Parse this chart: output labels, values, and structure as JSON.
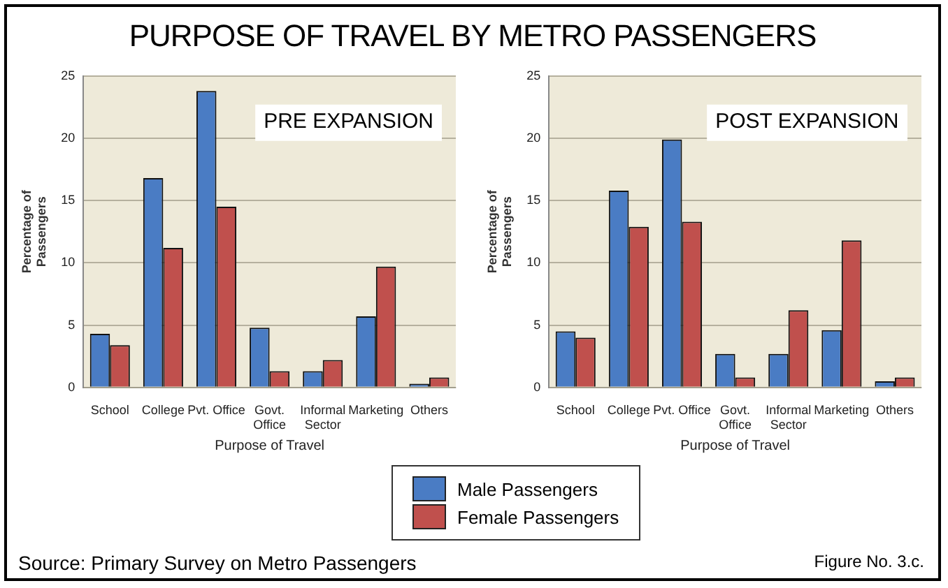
{
  "chart_data": [
    {
      "type": "bar",
      "title": "PURPOSE OF TRAVEL BY METRO PASSENGERS",
      "subtitle": "PRE EXPANSION",
      "xlabel": "Purpose of Travel",
      "ylabel": "Percentage of Passengers",
      "categories": [
        "School",
        "College",
        "Pvt. Office",
        "Govt. Office",
        "Informal Sector",
        "Marketing",
        "Others"
      ],
      "series": [
        {
          "name": "Male Passengers",
          "color": "#4a7cc4",
          "values": [
            4.3,
            16.8,
            23.8,
            4.8,
            1.3,
            5.7,
            0.3
          ]
        },
        {
          "name": "Female Passengers",
          "color": "#c0504d",
          "values": [
            3.4,
            11.2,
            14.5,
            1.3,
            2.2,
            9.7,
            0.8
          ]
        }
      ],
      "ylim": [
        0,
        25
      ],
      "yticks": [
        0,
        5,
        10,
        15,
        20,
        25
      ],
      "grid": "y",
      "legend": "bottom",
      "annotations": [
        "Source: Primary Survey on Metro Passengers",
        "Figure No. 3.c."
      ]
    },
    {
      "type": "bar",
      "subtitle": "POST EXPANSION",
      "xlabel": "Purpose of Travel",
      "ylabel": "Percentage of Passengers",
      "categories": [
        "School",
        "College",
        "Pvt. Office",
        "Govt. Office",
        "Informal Sector",
        "Marketing",
        "Others"
      ],
      "series": [
        {
          "color": "#4a7cc4",
          "values": [
            4.5,
            15.8,
            19.9,
            2.7,
            2.7,
            4.6,
            0.5
          ]
        },
        {
          "color": "#c0504d",
          "values": [
            4.0,
            12.9,
            13.3,
            0.8,
            6.2,
            11.8,
            0.8
          ]
        }
      ],
      "ylim": [
        0,
        25
      ],
      "yticks": [
        0,
        5,
        10,
        15,
        20,
        25
      ],
      "grid": "y"
    }
  ]
}
